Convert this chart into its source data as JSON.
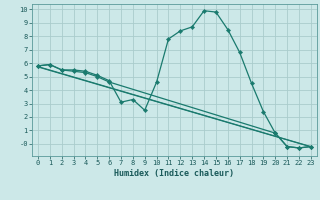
{
  "title": "",
  "xlabel": "Humidex (Indice chaleur)",
  "bg_color": "#cce8e8",
  "grid_color": "#aacccc",
  "line_color": "#1a7a6e",
  "marker_color": "#1a7a6e",
  "xlim": [
    -0.5,
    23.5
  ],
  "ylim": [
    -0.9,
    10.4
  ],
  "xticks": [
    0,
    1,
    2,
    3,
    4,
    5,
    6,
    7,
    8,
    9,
    10,
    11,
    12,
    13,
    14,
    15,
    16,
    17,
    18,
    19,
    20,
    21,
    22,
    23
  ],
  "yticks": [
    0,
    1,
    2,
    3,
    4,
    5,
    6,
    7,
    8,
    9,
    10
  ],
  "ytick_labels": [
    "-0",
    "1",
    "2",
    "3",
    "4",
    "5",
    "6",
    "7",
    "8",
    "9",
    "10"
  ],
  "line1": {
    "x": [
      0,
      1,
      2,
      3,
      4,
      5,
      6,
      7,
      8,
      9,
      10,
      11,
      12,
      13,
      14,
      15,
      16,
      17,
      18,
      19,
      20,
      21,
      22,
      23
    ],
    "y": [
      5.8,
      5.9,
      5.5,
      5.5,
      5.4,
      5.1,
      4.7,
      3.1,
      3.3,
      2.5,
      4.6,
      7.8,
      8.4,
      8.7,
      9.9,
      9.8,
      8.5,
      6.8,
      4.5,
      2.4,
      0.8,
      -0.2,
      -0.3,
      -0.2
    ]
  },
  "line2": {
    "x": [
      0,
      1,
      2,
      3,
      4,
      5,
      6,
      20,
      21,
      22,
      23
    ],
    "y": [
      5.8,
      5.9,
      5.5,
      5.4,
      5.3,
      5.0,
      4.6,
      0.8,
      -0.2,
      -0.3,
      -0.2
    ]
  },
  "line3": {
    "x": [
      0,
      23
    ],
    "y": [
      5.75,
      -0.2
    ]
  },
  "line4": {
    "x": [
      0,
      23
    ],
    "y": [
      5.72,
      -0.22
    ]
  }
}
